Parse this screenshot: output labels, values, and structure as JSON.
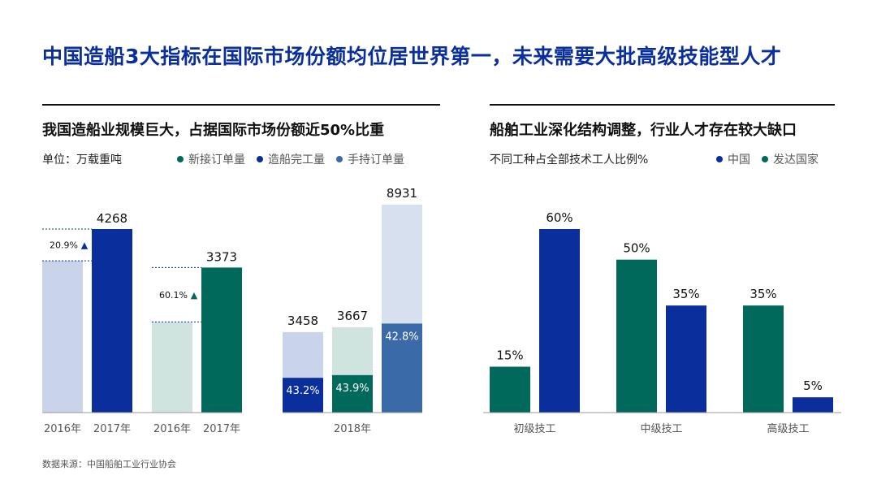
{
  "title": "中国造船3大指标在国际市场份额均位居世界第一，未来需要大批高级技能型人才",
  "source": "数据来源：中国船舶工业行业协会",
  "colors": {
    "new_orders": "#00695c",
    "completed": "#0a2f9c",
    "holding": "#2e5f9a",
    "light_blue": "#c9d4ea",
    "light_teal": "#cfe3df",
    "light_steel": "#d7e0ee",
    "title_blue": "#0a2f9c"
  },
  "left_panel": {
    "title": "我国造船业规模巨大，占据国际市场份额近50%比重",
    "unit": "单位：万载重吨",
    "legend": [
      {
        "label": "新接订单量",
        "color": "#00695c"
      },
      {
        "label": "造船完工量",
        "color": "#0a2f9c"
      },
      {
        "label": "手持订单量",
        "color": "#3a6aa8"
      }
    ]
  },
  "right_panel": {
    "title": "船舶工业深化结构调整，行业人才存在较大缺口",
    "subtitle": "不同工种占全部技术工人比例%",
    "legend": [
      {
        "label": "中国",
        "color": "#0a2f9c"
      },
      {
        "label": "发达国家",
        "color": "#00695c"
      }
    ]
  },
  "chart_data": [
    {
      "type": "bar",
      "name_ref": "completed-growth",
      "categories": [
        "2016年",
        "2017年"
      ],
      "values": [
        3530,
        4268
      ],
      "value_labels": [
        "",
        "4268"
      ],
      "growth_label": "20.9%",
      "growth_marker": "▲"
    },
    {
      "type": "bar",
      "name_ref": "new-orders-growth",
      "categories": [
        "2016年",
        "2017年"
      ],
      "values": [
        2107,
        3373
      ],
      "value_labels": [
        "",
        "3373"
      ],
      "growth_label": "60.1%",
      "growth_marker": "▲"
    },
    {
      "type": "bar",
      "name_ref": "share-2018",
      "x_label": "2018年",
      "bars": [
        {
          "total": 3458,
          "total_label": "3458",
          "share": 43.2,
          "share_label": "43.2%",
          "color": "#0a2f9c",
          "light": "#c9d4ea"
        },
        {
          "total": 3667,
          "total_label": "3667",
          "share": 43.9,
          "share_label": "43.9%",
          "color": "#00695c",
          "light": "#cfe3df"
        },
        {
          "total": 8931,
          "total_label": "8931",
          "share": 42.8,
          "share_label": "42.8%",
          "color": "#3a6aa8",
          "light": "#d7e0ee"
        }
      ]
    },
    {
      "type": "bar",
      "name_ref": "skill-distribution",
      "categories": [
        "初级技工",
        "中级技工",
        "高级技工"
      ],
      "series": [
        {
          "name": "发达国家",
          "values": [
            15,
            50,
            35
          ],
          "labels": [
            "15%",
            "50%",
            "35%"
          ],
          "color": "#00695c"
        },
        {
          "name": "中国",
          "values": [
            60,
            35,
            5
          ],
          "labels": [
            "60%",
            "35%",
            "5%"
          ],
          "color": "#0a2f9c"
        }
      ]
    }
  ]
}
